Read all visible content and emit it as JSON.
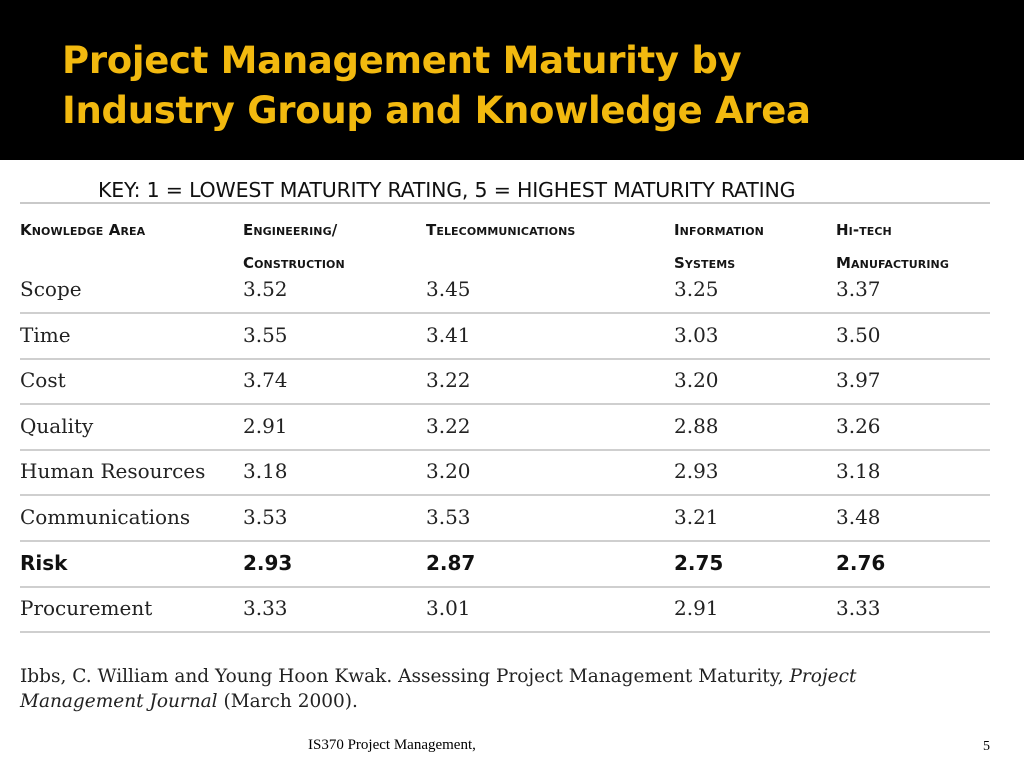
{
  "slide": {
    "title_line1": "Project Management Maturity by",
    "title_line2": "Industry Group and Knowledge Area",
    "title_color": "#f2b90f",
    "header_background": "#000000",
    "key": "KEY: 1 = LOWEST MATURITY RATING, 5 = HIGHEST MATURITY RATING",
    "footer_text": "IS370 Project Management,",
    "page_number": "5"
  },
  "table": {
    "headers": [
      [
        "Knowledge Area",
        ""
      ],
      [
        "Engineering/",
        "Construction"
      ],
      [
        "Telecommunications",
        ""
      ],
      [
        "Information",
        "Systems"
      ],
      [
        "Hi-tech",
        "Manufacturing"
      ]
    ],
    "rows": [
      {
        "area": "Scope",
        "values": [
          "3.52",
          "3.45",
          "3.25",
          "3.37"
        ],
        "bold": false
      },
      {
        "area": "Time",
        "values": [
          "3.55",
          "3.41",
          "3.03",
          "3.50"
        ],
        "bold": false
      },
      {
        "area": "Cost",
        "values": [
          "3.74",
          "3.22",
          "3.20",
          "3.97"
        ],
        "bold": false
      },
      {
        "area": "Quality",
        "values": [
          "2.91",
          "3.22",
          "2.88",
          "3.26"
        ],
        "bold": false
      },
      {
        "area": "Human Resources",
        "values": [
          "3.18",
          "3.20",
          "2.93",
          "3.18"
        ],
        "bold": false
      },
      {
        "area": "Communications",
        "values": [
          "3.53",
          "3.53",
          "3.21",
          "3.48"
        ],
        "bold": false
      },
      {
        "area": "Risk",
        "values": [
          "2.93",
          "2.87",
          "2.75",
          "2.76"
        ],
        "bold": true
      },
      {
        "area": "Procurement",
        "values": [
          "3.33",
          "3.01",
          "2.91",
          "3.33"
        ],
        "bold": false
      }
    ]
  },
  "citation": {
    "part1": "Ibbs, C. William and Young Hoon Kwak.  Assessing Project Management Maturity,",
    "journal_part1": "Project",
    "journal_part2": "Management Journal",
    "part2": "(March 2000)."
  }
}
